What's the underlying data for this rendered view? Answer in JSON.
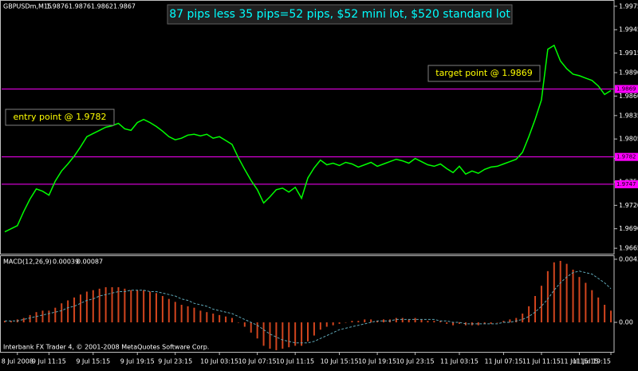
{
  "chart_data": [
    {
      "type": "line",
      "symbol": "GBPUSDm,M15",
      "quote": [
        1.9876,
        1.9876,
        1.9862,
        1.9867
      ],
      "title": "87 pips less 35 pips=52 pips, $52 mini lot, $520 standard lot",
      "annotations": [
        "entry point @ 1.9782",
        "target point @ 1.9869"
      ],
      "color": "#00ff00",
      "values": [
        1.9686,
        1.969,
        1.9694,
        1.9712,
        1.9728,
        1.9741,
        1.9738,
        1.9733,
        1.9751,
        1.9764,
        1.9773,
        1.9783,
        1.9795,
        1.9808,
        1.9812,
        1.9816,
        1.982,
        1.9822,
        1.9825,
        1.9818,
        1.9816,
        1.9826,
        1.983,
        1.9826,
        1.9821,
        1.9815,
        1.9808,
        1.9804,
        1.9806,
        1.981,
        1.9811,
        1.9809,
        1.9811,
        1.9806,
        1.9808,
        1.9803,
        1.9798,
        1.9781,
        1.9766,
        1.9752,
        1.974,
        1.9723,
        1.9731,
        1.974,
        1.9742,
        1.9737,
        1.9743,
        1.9729,
        1.9755,
        1.9768,
        1.9778,
        1.9772,
        1.9774,
        1.9771,
        1.9775,
        1.9773,
        1.9769,
        1.9772,
        1.9775,
        1.977,
        1.9773,
        1.9776,
        1.9779,
        1.9777,
        1.9774,
        1.978,
        1.9776,
        1.9772,
        1.977,
        1.9773,
        1.9767,
        1.9762,
        1.977,
        1.976,
        1.9764,
        1.9761,
        1.9766,
        1.9769,
        1.977,
        1.9773,
        1.9776,
        1.9779,
        1.9788,
        1.9808,
        1.983,
        1.9855,
        1.992,
        1.9925,
        1.9905,
        1.9895,
        1.9888,
        1.9886,
        1.9883,
        1.988,
        1.9873,
        1.9862,
        1.9867
      ],
      "levels": [
        1.9869,
        1.9782,
        1.9747
      ],
      "level_color": "#ff00ff",
      "ylim": [
        1.9658,
        1.9981
      ],
      "yticks": [
        1.9975,
        1.9945,
        1.9915,
        {
          "value": 1.989,
          "label": "1.9890"
        },
        {
          "value": 1.986,
          "label": "1.9860"
        },
        1.9835,
        1.9805,
        {
          "value": 1.978,
          "label": "1.9780"
        },
        {
          "value": 1.975,
          "label": "1.9750"
        },
        {
          "value": 1.972,
          "label": "1.9720"
        },
        {
          "value": 1.969,
          "label": "1.9690"
        },
        1.9665
      ],
      "xticks": [
        {
          "value": 2,
          "label": "8 Jul 2008"
        },
        {
          "value": 7,
          "label": "9 Jul 11:15"
        },
        {
          "value": 14,
          "label": "9 Jul 15:15"
        },
        {
          "value": 21,
          "label": "9 Jul 19:15"
        },
        {
          "value": 27,
          "label": "9 Jul 23:15"
        },
        {
          "value": 34,
          "label": "10 Jul 03:15"
        },
        {
          "value": 40,
          "label": "10 Jul 07:15"
        },
        {
          "value": 46,
          "label": "10 Jul 11:15"
        },
        {
          "value": 53,
          "label": "10 Jul 15:15"
        },
        {
          "value": 59,
          "label": "10 Jul 19:15"
        },
        {
          "value": 65,
          "label": "10 Jul 23:15"
        },
        {
          "value": 72,
          "label": "11 Jul 03:15"
        },
        {
          "value": 79,
          "label": "11 Jul 07:15"
        },
        {
          "value": 85,
          "label": "11 Jul 11:15"
        },
        {
          "value": 91,
          "label": "11 Jul 15:15"
        },
        {
          "value": 96,
          "label": "11 Jul 19:15"
        }
      ]
    },
    {
      "type": "macd",
      "label": "MACD(12,26,9)",
      "readings": [
        0.00039,
        0.00087
      ],
      "series": [
        {
          "color": "#d2451e",
          "values": [
            0.0001,
            0.0001,
            0.0002,
            0.0003,
            0.0005,
            0.0007,
            0.0008,
            0.0008,
            0.001,
            0.0013,
            0.0015,
            0.0017,
            0.0019,
            0.0021,
            0.0022,
            0.0023,
            0.0024,
            0.0024,
            0.0024,
            0.0023,
            0.0022,
            0.0022,
            0.0022,
            0.0021,
            0.002,
            0.0018,
            0.0016,
            0.0014,
            0.0012,
            0.0011,
            0.001,
            0.0008,
            0.0007,
            0.0006,
            0.0005,
            0.0004,
            0.0003,
            0,
            -0.0003,
            -0.0007,
            -0.0011,
            -0.0016,
            -0.0018,
            -0.0019,
            -0.0018,
            -0.0017,
            -0.0016,
            -0.0016,
            -0.0013,
            -0.0009,
            -0.0005,
            -0.0003,
            -0.0002,
            -0.0001,
            0,
            0.0001,
            0.0001,
            0.0002,
            0.0002,
            0.0001,
            0.0002,
            0.0002,
            0.0003,
            0.0003,
            0.0002,
            0.0003,
            0.0002,
            0.0001,
            0.0001,
            0.0001,
            -0.0001,
            -0.0002,
            -0.0001,
            -0.0002,
            -0.0002,
            -0.0002,
            -0.0001,
            -0.0001,
            0,
            0.0001,
            0.0002,
            0.0003,
            0.0006,
            0.0011,
            0.0018,
            0.0025,
            0.0035,
            0.0041,
            0.0042,
            0.004,
            0.0036,
            0.0031,
            0.0027,
            0.0022,
            0.0017,
            0.0012,
            0.0008
          ]
        },
        {
          "color": "#5fa8b8",
          "values": [
            0.0001,
            0.0001,
            0.0001,
            0.0002,
            0.0003,
            0.0004,
            0.0005,
            0.0006,
            0.0007,
            0.0008,
            0.001,
            0.0011,
            0.0013,
            0.0015,
            0.0016,
            0.0018,
            0.0019,
            0.002,
            0.0021,
            0.0021,
            0.0022,
            0.0022,
            0.0022,
            0.0021,
            0.0021,
            0.002,
            0.0019,
            0.0018,
            0.0016,
            0.0015,
            0.0013,
            0.0012,
            0.0011,
            0.0009,
            0.0008,
            0.0007,
            0.0006,
            0.0004,
            0.0002,
            0,
            -0.0002,
            -0.0005,
            -0.0008,
            -0.001,
            -0.0012,
            -0.0013,
            -0.0014,
            -0.0014,
            -0.0014,
            -0.0013,
            -0.0011,
            -0.0009,
            -0.0007,
            -0.0005,
            -0.0004,
            -0.0003,
            -0.0002,
            -0.0001,
            0,
            0.0001,
            0.0001,
            0.0001,
            0.0002,
            0.0002,
            0.0002,
            0.0002,
            0.0002,
            0.0002,
            0.0002,
            0.0001,
            0.0001,
            0,
            0,
            -0.0001,
            -0.0001,
            -0.0001,
            -0.0001,
            -0.0001,
            -0.0001,
            0,
            0,
            0.0001,
            0.0002,
            0.0004,
            0.0007,
            0.0011,
            0.0016,
            0.0022,
            0.0027,
            0.0031,
            0.0034,
            0.0035,
            0.0034,
            0.0033,
            0.003,
            0.0027,
            0.0023
          ]
        }
      ],
      "ylim": [
        -0.00196,
        0.00458
      ],
      "yticks": [
        0.00431,
        {
          "value": 0,
          "label": "0.00"
        }
      ]
    }
  ],
  "footer": "Interbank FX Trader 4, © 2001-2008 MetaQuotes Software Corp."
}
